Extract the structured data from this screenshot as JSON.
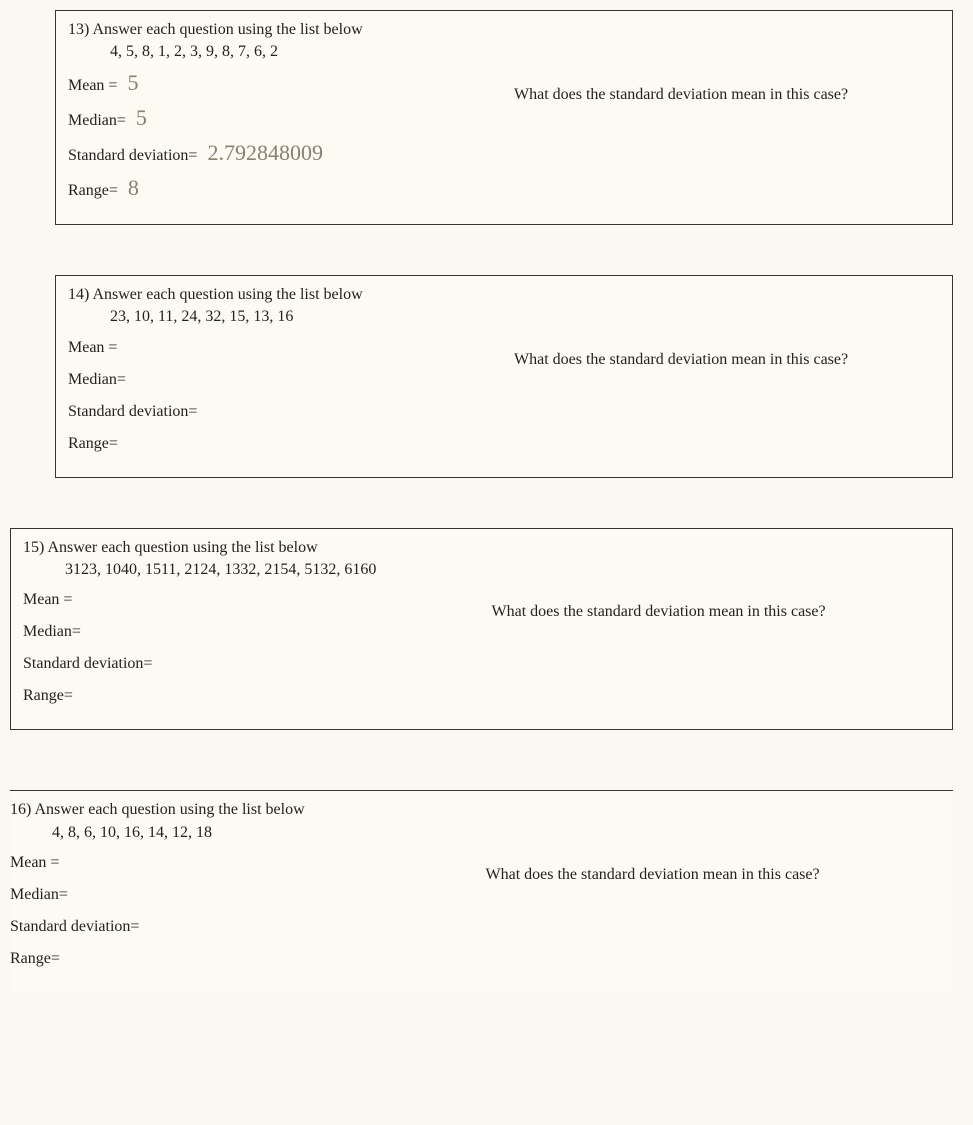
{
  "questions": [
    {
      "number": "13)",
      "prompt": "Answer each question using the list below",
      "data": "4, 5, 8, 1, 2, 3, 9, 8, 7, 6, 2",
      "stats": {
        "mean_label": "Mean =",
        "mean_value": "5",
        "median_label": "Median=",
        "median_value": "5",
        "stddev_label": "Standard deviation=",
        "stddev_value": "2.792848009",
        "range_label": "Range=",
        "range_value": "8"
      },
      "side_question": "What does the standard deviation mean in this case?"
    },
    {
      "number": "14)",
      "prompt": "Answer each question using the list below",
      "data": "23, 10, 11, 24, 32, 15, 13, 16",
      "stats": {
        "mean_label": "Mean =",
        "mean_value": "",
        "median_label": "Median=",
        "median_value": "",
        "stddev_label": "Standard deviation=",
        "stddev_value": "",
        "range_label": "Range=",
        "range_value": ""
      },
      "side_question": "What does the standard deviation mean in this case?"
    },
    {
      "number": "15)",
      "prompt": "Answer each question using the list below",
      "data": "3123, 1040, 1511, 2124, 1332, 2154, 5132, 6160",
      "stats": {
        "mean_label": "Mean =",
        "mean_value": "",
        "median_label": "Median=",
        "median_value": "",
        "stddev_label": "Standard deviation=",
        "stddev_value": "",
        "range_label": "Range=",
        "range_value": ""
      },
      "side_question": "What does the standard deviation mean in this case?"
    },
    {
      "number": "16)",
      "prompt": "Answer each question using the list below",
      "data": "4, 8, 6, 10, 16, 14, 12, 18",
      "stats": {
        "mean_label": "Mean =",
        "mean_value": "",
        "median_label": "Median=",
        "median_value": "",
        "stddev_label": "Standard deviation=",
        "stddev_value": "",
        "range_label": "Range=",
        "range_value": ""
      },
      "side_question": "What does the standard deviation mean in this case?"
    }
  ],
  "colors": {
    "background": "#f5f0e0",
    "paper": "#fcfaf2",
    "text": "#222222",
    "handwriting": "#888070",
    "border": "#333333"
  },
  "typography": {
    "body_font": "Georgia, Times New Roman, serif",
    "handwriting_font": "Comic Sans MS, cursive",
    "body_size_pt": 12,
    "handwriting_size_pt": 16
  }
}
